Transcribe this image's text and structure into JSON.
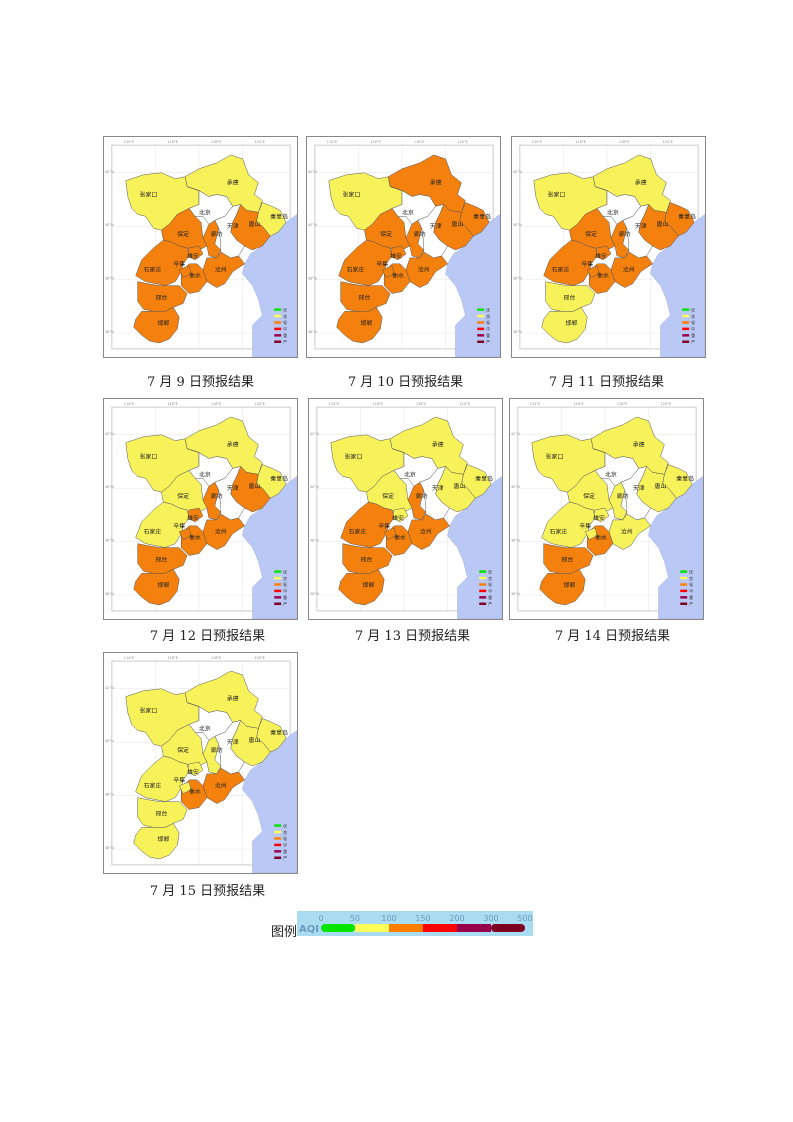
{
  "colors": {
    "good": "#00e400",
    "moderate": "#ffff5a",
    "light": "#ff7e00",
    "medium": "#ff0000",
    "heavy": "#99004c",
    "severe": "#7e0023",
    "map_yellow": "#f8f25a",
    "map_orange": "#f4800e",
    "sea": "#b9c8f5",
    "beijing_tianjin": "#ffffff"
  },
  "city_labels": [
    "张家口",
    "承德",
    "北京",
    "天津",
    "秦皇岛",
    "唐山",
    "廊坊",
    "保定",
    "雄安",
    "沧州",
    "石家庄",
    "衡水",
    "辛集",
    "邢台",
    "邯郸"
  ],
  "panel_legend_labels": [
    "优",
    "良",
    "轻",
    "中",
    "重",
    "严"
  ],
  "lon_ticks": [
    "114°E",
    "116°E",
    "118°E",
    "120°E"
  ],
  "lat_ticks": [
    "42°N",
    "40°N",
    "38°N",
    "36°N"
  ],
  "forecasts": [
    {
      "caption": "7 月 9 日预报结果",
      "levels": {
        "zhangjiakou": "moderate",
        "chengde": "moderate",
        "qinhuangdao": "moderate",
        "tangshan": "light",
        "langfang": "light",
        "baoding": "light",
        "xiongan": "light",
        "cangzhou": "light",
        "shijiazhuang": "light",
        "hengshui": "light",
        "xinji": "light",
        "xingtai": "light",
        "handan": "light"
      }
    },
    {
      "caption": "7 月 10 日预报结果",
      "levels": {
        "zhangjiakou": "moderate",
        "chengde": "light",
        "qinhuangdao": "light",
        "tangshan": "light",
        "langfang": "light",
        "baoding": "light",
        "xiongan": "light",
        "cangzhou": "light",
        "shijiazhuang": "light",
        "hengshui": "light",
        "xinji": "light",
        "xingtai": "light",
        "handan": "light"
      }
    },
    {
      "caption": "7 月 11 日预报结果",
      "levels": {
        "zhangjiakou": "moderate",
        "chengde": "moderate",
        "qinhuangdao": "light",
        "tangshan": "light",
        "langfang": "light",
        "baoding": "light",
        "xiongan": "light",
        "cangzhou": "light",
        "shijiazhuang": "light",
        "hengshui": "light",
        "xinji": "light",
        "xingtai": "moderate",
        "handan": "moderate"
      }
    },
    {
      "caption": "7 月 12 日预报结果",
      "levels": {
        "zhangjiakou": "moderate",
        "chengde": "moderate",
        "qinhuangdao": "moderate",
        "tangshan": "light",
        "langfang": "light",
        "baoding": "moderate",
        "xiongan": "light",
        "cangzhou": "light",
        "shijiazhuang": "moderate",
        "hengshui": "light",
        "xinji": "light",
        "xingtai": "light",
        "handan": "light"
      }
    },
    {
      "caption": "7 月 13 日预报结果",
      "levels": {
        "zhangjiakou": "moderate",
        "chengde": "moderate",
        "qinhuangdao": "moderate",
        "tangshan": "moderate",
        "langfang": "light",
        "baoding": "moderate",
        "xiongan": "moderate",
        "cangzhou": "light",
        "shijiazhuang": "light",
        "hengshui": "light",
        "xinji": "light",
        "xingtai": "light",
        "handan": "light"
      }
    },
    {
      "caption": "7 月 14 日预报结果",
      "levels": {
        "zhangjiakou": "moderate",
        "chengde": "moderate",
        "qinhuangdao": "moderate",
        "tangshan": "moderate",
        "langfang": "moderate",
        "baoding": "moderate",
        "xiongan": "moderate",
        "cangzhou": "moderate",
        "shijiazhuang": "moderate",
        "hengshui": "light",
        "xinji": "moderate",
        "xingtai": "light",
        "handan": "light"
      }
    },
    {
      "caption": "7 月 15 日预报结果",
      "levels": {
        "zhangjiakou": "moderate",
        "chengde": "moderate",
        "qinhuangdao": "moderate",
        "tangshan": "moderate",
        "langfang": "moderate",
        "baoding": "moderate",
        "xiongan": "moderate",
        "cangzhou": "light",
        "shijiazhuang": "moderate",
        "hengshui": "light",
        "xinji": "moderate",
        "xingtai": "moderate",
        "handan": "moderate"
      }
    }
  ],
  "legend": {
    "label": "图例",
    "axis_title": "AQI",
    "ticks": [
      "0",
      "50",
      "100",
      "150",
      "200",
      "300",
      "500"
    ]
  }
}
